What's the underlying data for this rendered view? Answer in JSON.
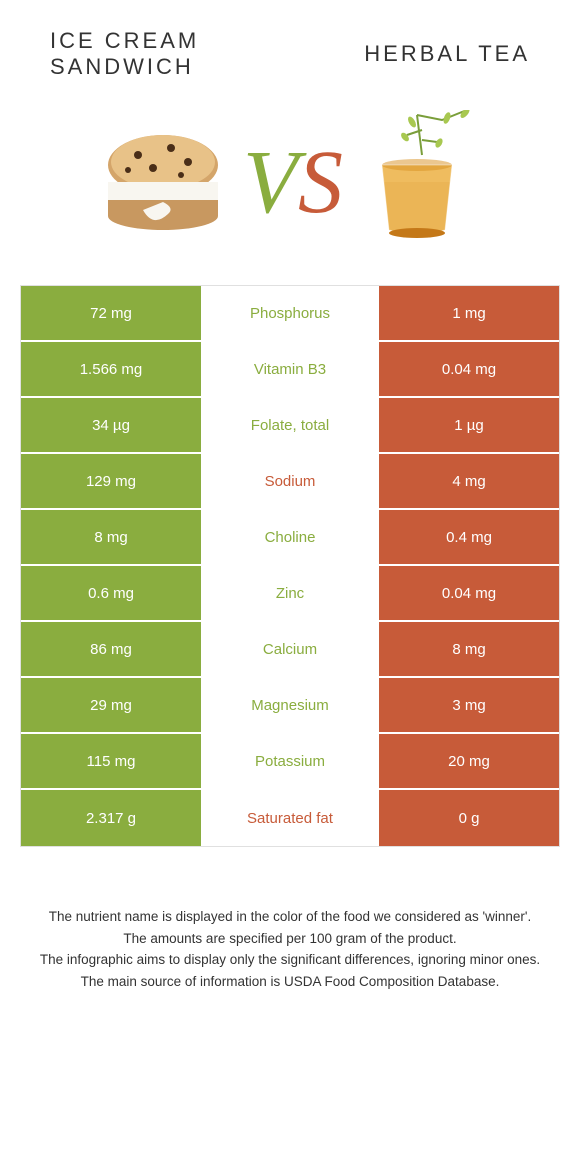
{
  "header": {
    "left_title_line1": "ICE CREAM",
    "left_title_line2": "SANDWICH",
    "right_title": "HERBAL TEA"
  },
  "colors": {
    "green": "#8aad3f",
    "green_win": "#8aad3f",
    "orange": "#c75b39",
    "row_bg_std": "#8aad3f",
    "text_green": "#8aad3f",
    "text_orange": "#c75b39"
  },
  "vs": {
    "v": "V",
    "s": "S"
  },
  "rows": [
    {
      "left": "72 mg",
      "label": "Phosphorus",
      "right": "1 mg",
      "winner": "left",
      "label_color": "#8aad3f"
    },
    {
      "left": "1.566 mg",
      "label": "Vitamin B3",
      "right": "0.04 mg",
      "winner": "left",
      "label_color": "#8aad3f"
    },
    {
      "left": "34 µg",
      "label": "Folate, total",
      "right": "1 µg",
      "winner": "left",
      "label_color": "#8aad3f"
    },
    {
      "left": "129 mg",
      "label": "Sodium",
      "right": "4 mg",
      "winner": "left",
      "label_color": "#c75b39"
    },
    {
      "left": "8 mg",
      "label": "Choline",
      "right": "0.4 mg",
      "winner": "left",
      "label_color": "#8aad3f"
    },
    {
      "left": "0.6 mg",
      "label": "Zinc",
      "right": "0.04 mg",
      "winner": "left",
      "label_color": "#8aad3f"
    },
    {
      "left": "86 mg",
      "label": "Calcium",
      "right": "8 mg",
      "winner": "left",
      "label_color": "#8aad3f"
    },
    {
      "left": "29 mg",
      "label": "Magnesium",
      "right": "3 mg",
      "winner": "left",
      "label_color": "#8aad3f"
    },
    {
      "left": "115 mg",
      "label": "Potassium",
      "right": "20 mg",
      "winner": "left",
      "label_color": "#8aad3f"
    },
    {
      "left": "2.317 g",
      "label": "Saturated fat",
      "right": "0 g",
      "winner": "left",
      "label_color": "#c75b39"
    }
  ],
  "cell_colors": {
    "winner_bg": "#8aad3f",
    "loser_bg": "#c75b39"
  },
  "footnotes": [
    "The nutrient name is displayed in the color of the food we considered as 'winner'.",
    "The amounts are specified per 100 gram of the product.",
    "The infographic aims to display only the significant differences, ignoring minor ones.",
    "The main source of information is USDA Food Composition Database."
  ]
}
